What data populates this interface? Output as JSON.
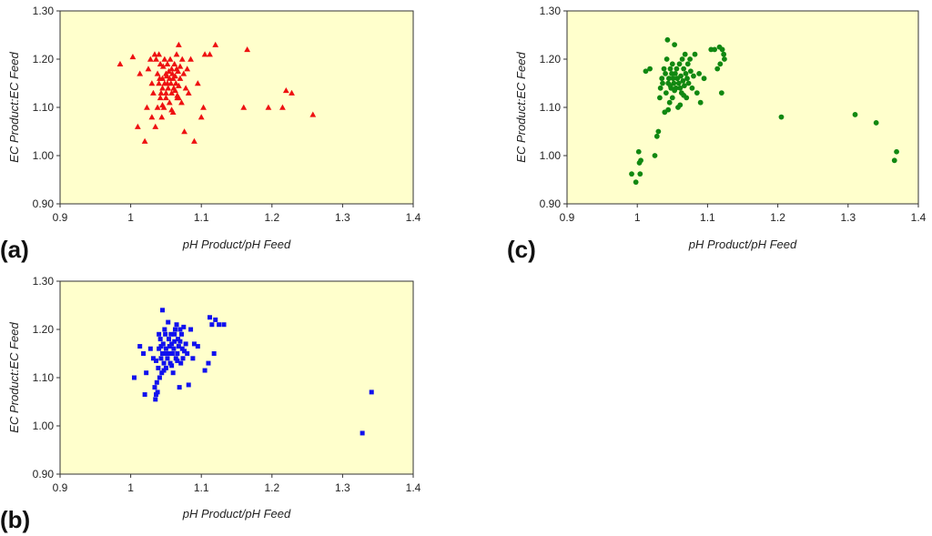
{
  "chart_data": [
    {
      "id": "a",
      "panel_label": "(a)",
      "type": "scatter",
      "marker": "triangle",
      "color": "#ee1111",
      "background": "#ffffcc",
      "xlabel": "pH Product/pH Feed",
      "ylabel": "EC Product:EC Feed",
      "xlim": [
        0.9,
        1.4
      ],
      "ylim": [
        0.9,
        1.3
      ],
      "xticks": [
        "0.9",
        "1",
        "1.1",
        "1.2",
        "1.3",
        "1.4"
      ],
      "yticks": [
        "0.90",
        "1.00",
        "1.10",
        "1.20",
        "1.30"
      ],
      "points": [
        [
          0.985,
          1.19
        ],
        [
          1.003,
          1.205
        ],
        [
          1.01,
          1.06
        ],
        [
          1.013,
          1.17
        ],
        [
          1.02,
          1.03
        ],
        [
          1.023,
          1.1
        ],
        [
          1.025,
          1.18
        ],
        [
          1.028,
          1.2
        ],
        [
          1.03,
          1.15
        ],
        [
          1.03,
          1.08
        ],
        [
          1.032,
          1.13
        ],
        [
          1.034,
          1.21
        ],
        [
          1.035,
          1.06
        ],
        [
          1.036,
          1.2
        ],
        [
          1.038,
          1.17
        ],
        [
          1.038,
          1.1
        ],
        [
          1.04,
          1.15
        ],
        [
          1.04,
          1.21
        ],
        [
          1.042,
          1.19
        ],
        [
          1.042,
          1.12
        ],
        [
          1.043,
          1.13
        ],
        [
          1.044,
          1.08
        ],
        [
          1.045,
          1.14
        ],
        [
          1.045,
          1.16
        ],
        [
          1.046,
          1.185
        ],
        [
          1.047,
          1.1
        ],
        [
          1.048,
          1.15
        ],
        [
          1.048,
          1.2
        ],
        [
          1.05,
          1.17
        ],
        [
          1.05,
          1.13
        ],
        [
          1.05,
          1.12
        ],
        [
          1.051,
          1.165
        ],
        [
          1.052,
          1.15
        ],
        [
          1.052,
          1.19
        ],
        [
          1.053,
          1.14
        ],
        [
          1.054,
          1.175
        ],
        [
          1.055,
          1.16
        ],
        [
          1.055,
          1.11
        ],
        [
          1.056,
          1.2
        ],
        [
          1.057,
          1.15
        ],
        [
          1.058,
          1.18
        ],
        [
          1.058,
          1.13
        ],
        [
          1.059,
          1.17
        ],
        [
          1.06,
          1.16
        ],
        [
          1.06,
          1.09
        ],
        [
          1.061,
          1.14
        ],
        [
          1.062,
          1.19
        ],
        [
          1.063,
          1.165
        ],
        [
          1.064,
          1.15
        ],
        [
          1.065,
          1.18
        ],
        [
          1.065,
          1.21
        ],
        [
          1.066,
          1.12
        ],
        [
          1.067,
          1.175
        ],
        [
          1.068,
          1.145
        ],
        [
          1.068,
          1.23
        ],
        [
          1.07,
          1.185
        ],
        [
          1.07,
          1.16
        ],
        [
          1.072,
          1.11
        ],
        [
          1.073,
          1.2
        ],
        [
          1.075,
          1.17
        ],
        [
          1.076,
          1.05
        ],
        [
          1.078,
          1.14
        ],
        [
          1.08,
          1.18
        ],
        [
          1.082,
          1.13
        ],
        [
          1.085,
          1.2
        ],
        [
          1.09,
          1.03
        ],
        [
          1.095,
          1.15
        ],
        [
          1.1,
          1.08
        ],
        [
          1.103,
          1.1
        ],
        [
          1.105,
          1.21
        ],
        [
          1.112,
          1.21
        ],
        [
          1.12,
          1.23
        ],
        [
          1.16,
          1.1
        ],
        [
          1.165,
          1.22
        ],
        [
          1.195,
          1.1
        ],
        [
          1.215,
          1.1
        ],
        [
          1.22,
          1.135
        ],
        [
          1.228,
          1.13
        ],
        [
          1.258,
          1.085
        ],
        [
          1.068,
          1.12
        ],
        [
          1.045,
          1.105
        ],
        [
          1.058,
          1.095
        ],
        [
          1.041,
          1.16
        ],
        [
          1.063,
          1.135
        ],
        [
          1.066,
          1.125
        ]
      ]
    },
    {
      "id": "b",
      "panel_label": "(b)",
      "type": "scatter",
      "marker": "square",
      "color": "#1111ee",
      "background": "#ffffcc",
      "xlabel": "pH Product/pH Feed",
      "ylabel": "EC Product:EC Feed",
      "xlim": [
        0.9,
        1.4
      ],
      "ylim": [
        0.9,
        1.3
      ],
      "xticks": [
        "0.9",
        "1",
        "1.1",
        "1.2",
        "1.3",
        "1.4"
      ],
      "yticks": [
        "0.90",
        "1.00",
        "1.10",
        "1.20",
        "1.30"
      ],
      "points": [
        [
          1.005,
          1.1
        ],
        [
          1.013,
          1.165
        ],
        [
          1.018,
          1.15
        ],
        [
          1.02,
          1.065
        ],
        [
          1.022,
          1.11
        ],
        [
          1.028,
          1.16
        ],
        [
          1.032,
          1.14
        ],
        [
          1.034,
          1.08
        ],
        [
          1.035,
          1.055
        ],
        [
          1.036,
          1.065
        ],
        [
          1.037,
          1.09
        ],
        [
          1.038,
          1.07
        ],
        [
          1.039,
          1.12
        ],
        [
          1.04,
          1.16
        ],
        [
          1.04,
          1.19
        ],
        [
          1.041,
          1.1
        ],
        [
          1.042,
          1.18
        ],
        [
          1.043,
          1.14
        ],
        [
          1.044,
          1.11
        ],
        [
          1.045,
          1.15
        ],
        [
          1.045,
          1.24
        ],
        [
          1.046,
          1.17
        ],
        [
          1.047,
          1.13
        ],
        [
          1.048,
          1.2
        ],
        [
          1.049,
          1.19
        ],
        [
          1.05,
          1.16
        ],
        [
          1.05,
          1.12
        ],
        [
          1.051,
          1.15
        ],
        [
          1.052,
          1.14
        ],
        [
          1.053,
          1.215
        ],
        [
          1.054,
          1.18
        ],
        [
          1.055,
          1.165
        ],
        [
          1.056,
          1.13
        ],
        [
          1.057,
          1.19
        ],
        [
          1.058,
          1.17
        ],
        [
          1.059,
          1.15
        ],
        [
          1.06,
          1.11
        ],
        [
          1.061,
          1.16
        ],
        [
          1.062,
          1.175
        ],
        [
          1.063,
          1.2
        ],
        [
          1.064,
          1.14
        ],
        [
          1.065,
          1.21
        ],
        [
          1.066,
          1.15
        ],
        [
          1.067,
          1.18
        ],
        [
          1.068,
          1.165
        ],
        [
          1.069,
          1.08
        ],
        [
          1.07,
          1.2
        ],
        [
          1.071,
          1.13
        ],
        [
          1.072,
          1.19
        ],
        [
          1.073,
          1.16
        ],
        [
          1.074,
          1.14
        ],
        [
          1.075,
          1.205
        ],
        [
          1.076,
          1.155
        ],
        [
          1.078,
          1.17
        ],
        [
          1.08,
          1.15
        ],
        [
          1.082,
          1.085
        ],
        [
          1.085,
          1.2
        ],
        [
          1.088,
          1.14
        ],
        [
          1.09,
          1.17
        ],
        [
          1.095,
          1.165
        ],
        [
          1.105,
          1.115
        ],
        [
          1.11,
          1.13
        ],
        [
          1.112,
          1.225
        ],
        [
          1.115,
          1.21
        ],
        [
          1.118,
          1.15
        ],
        [
          1.12,
          1.22
        ],
        [
          1.125,
          1.21
        ],
        [
          1.132,
          1.21
        ],
        [
          1.328,
          0.985
        ],
        [
          1.341,
          1.07
        ],
        [
          1.047,
          1.115
        ],
        [
          1.058,
          1.125
        ],
        [
          1.043,
          1.165
        ],
        [
          1.066,
          1.135
        ],
        [
          1.054,
          1.15
        ],
        [
          1.036,
          1.135
        ],
        [
          1.062,
          1.19
        ],
        [
          1.07,
          1.175
        ]
      ]
    },
    {
      "id": "c",
      "panel_label": "(c)",
      "type": "scatter",
      "marker": "circle",
      "color": "#118811",
      "background": "#ffffcc",
      "xlabel": "pH Product/pH Feed",
      "ylabel": "EC Product:EC Feed",
      "xlim": [
        0.9,
        1.4
      ],
      "ylim": [
        0.9,
        1.3
      ],
      "xticks": [
        "0.9",
        "1",
        "1.1",
        "1.2",
        "1.3",
        "1.4"
      ],
      "yticks": [
        "0.90",
        "1.00",
        "1.10",
        "1.20",
        "1.30"
      ],
      "points": [
        [
          0.992,
          0.962
        ],
        [
          0.998,
          0.945
        ],
        [
          1.002,
          1.008
        ],
        [
          1.003,
          0.985
        ],
        [
          1.004,
          0.962
        ],
        [
          1.005,
          0.99
        ],
        [
          1.012,
          1.175
        ],
        [
          1.018,
          1.18
        ],
        [
          1.025,
          1.0
        ],
        [
          1.028,
          1.04
        ],
        [
          1.03,
          1.05
        ],
        [
          1.032,
          1.12
        ],
        [
          1.033,
          1.14
        ],
        [
          1.035,
          1.16
        ],
        [
          1.036,
          1.15
        ],
        [
          1.038,
          1.18
        ],
        [
          1.039,
          1.09
        ],
        [
          1.04,
          1.17
        ],
        [
          1.041,
          1.13
        ],
        [
          1.042,
          1.2
        ],
        [
          1.043,
          1.24
        ],
        [
          1.044,
          1.15
        ],
        [
          1.045,
          1.16
        ],
        [
          1.046,
          1.11
        ],
        [
          1.047,
          1.18
        ],
        [
          1.048,
          1.14
        ],
        [
          1.049,
          1.17
        ],
        [
          1.05,
          1.19
        ],
        [
          1.05,
          1.12
        ],
        [
          1.051,
          1.16
        ],
        [
          1.052,
          1.15
        ],
        [
          1.053,
          1.23
        ],
        [
          1.054,
          1.17
        ],
        [
          1.055,
          1.14
        ],
        [
          1.056,
          1.18
        ],
        [
          1.057,
          1.16
        ],
        [
          1.058,
          1.1
        ],
        [
          1.059,
          1.15
        ],
        [
          1.06,
          1.19
        ],
        [
          1.061,
          1.14
        ],
        [
          1.062,
          1.165
        ],
        [
          1.063,
          1.13
        ],
        [
          1.064,
          1.2
        ],
        [
          1.065,
          1.155
        ],
        [
          1.066,
          1.18
        ],
        [
          1.067,
          1.145
        ],
        [
          1.068,
          1.21
        ],
        [
          1.069,
          1.17
        ],
        [
          1.07,
          1.12
        ],
        [
          1.071,
          1.16
        ],
        [
          1.072,
          1.19
        ],
        [
          1.073,
          1.15
        ],
        [
          1.075,
          1.2
        ],
        [
          1.076,
          1.175
        ],
        [
          1.078,
          1.14
        ],
        [
          1.08,
          1.165
        ],
        [
          1.082,
          1.21
        ],
        [
          1.085,
          1.13
        ],
        [
          1.088,
          1.17
        ],
        [
          1.09,
          1.11
        ],
        [
          1.095,
          1.16
        ],
        [
          1.105,
          1.22
        ],
        [
          1.11,
          1.22
        ],
        [
          1.114,
          1.18
        ],
        [
          1.117,
          1.225
        ],
        [
          1.118,
          1.19
        ],
        [
          1.12,
          1.13
        ],
        [
          1.121,
          1.22
        ],
        [
          1.123,
          1.21
        ],
        [
          1.124,
          1.2
        ],
        [
          1.205,
          1.08
        ],
        [
          1.31,
          1.085
        ],
        [
          1.34,
          1.068
        ],
        [
          1.366,
          0.99
        ],
        [
          1.369,
          1.008
        ],
        [
          1.044,
          1.095
        ],
        [
          1.066,
          1.125
        ],
        [
          1.053,
          1.135
        ],
        [
          1.061,
          1.105
        ],
        [
          1.047,
          1.145
        ]
      ]
    }
  ]
}
